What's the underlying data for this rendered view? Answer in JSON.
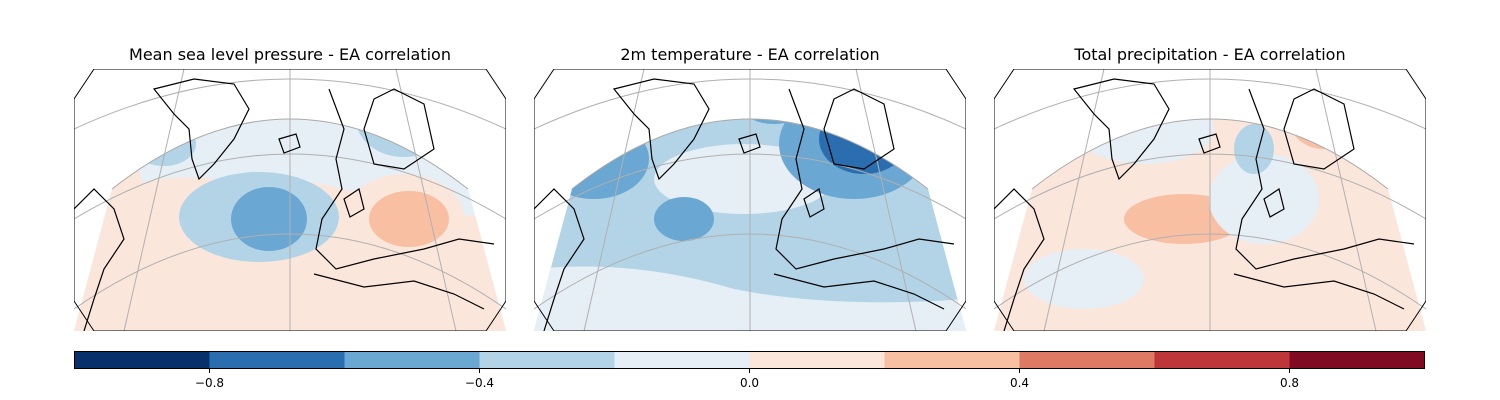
{
  "panels": [
    {
      "id": "mslp",
      "title": "Mean sea level pressure - EA correlation"
    },
    {
      "id": "t2m",
      "title": "2m temperature - EA correlation"
    },
    {
      "id": "tp",
      "title": "Total precipitation - EA correlation"
    }
  ],
  "colorbar": {
    "min": -1.0,
    "max": 1.0,
    "colormap": "RdBu_r",
    "colors": [
      "#08306b",
      "#2a6eb0",
      "#6aa7d2",
      "#b2d4e6",
      "#e6eef6",
      "#fbe6dc",
      "#f8bfa2",
      "#de7a63",
      "#bf363a",
      "#7f0a21"
    ],
    "ticks": [
      -0.8,
      -0.4,
      0.0,
      0.4,
      0.8
    ],
    "tick_labels": [
      "−0.8",
      "−0.4",
      "0.0",
      "0.4",
      "0.8"
    ]
  }
}
